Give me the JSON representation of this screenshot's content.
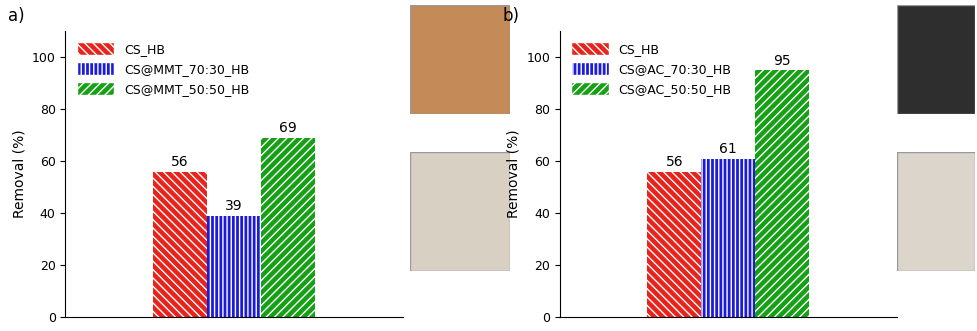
{
  "chart_data": [
    {
      "type": "bar",
      "title": "a)",
      "y_label": "Removal (%)",
      "categories": [
        null
      ],
      "series": [
        {
          "name": "CS_HB",
          "color": "#e8231c",
          "values": [
            56
          ]
        },
        {
          "name": "CS@MMT_70:30_HB",
          "color": "#1c1cd8",
          "values": [
            39
          ]
        },
        {
          "name": "CS@MMT_50:50_HB",
          "color": "#16a016",
          "values": [
            69
          ]
        }
      ],
      "ylim": [
        0,
        110
      ],
      "yticks": [
        0,
        20,
        40,
        60,
        80,
        100
      ],
      "legend": "upper left",
      "data_labels": true,
      "tick_labels": "y",
      "grid": false
    },
    {
      "type": "bar",
      "title": "b)",
      "y_label": "Removal (%)",
      "categories": [
        null
      ],
      "series": [
        {
          "name": "CS_HB",
          "color": "#e8231c",
          "values": [
            56
          ]
        },
        {
          "name": "CS@AC_70:30_HB",
          "color": "#1c1cd8",
          "values": [
            61
          ]
        },
        {
          "name": "CS@AC_50:50_HB",
          "color": "#16a016",
          "values": [
            95
          ]
        }
      ],
      "ylim": [
        0,
        110
      ],
      "yticks": [
        0,
        20,
        40,
        60,
        80,
        100
      ],
      "legend": "upper left",
      "data_labels": true,
      "tick_labels": "y",
      "grid": false
    }
  ]
}
